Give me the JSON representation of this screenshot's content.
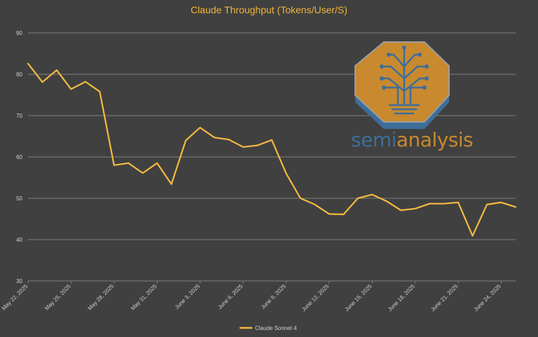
{
  "colors": {
    "background": "#404040",
    "title": "#F0B53A",
    "line": "#F5B942",
    "grid": "#808080",
    "tick_text": "#D0D0D0",
    "logo_orange": "#C9892E",
    "logo_blue": "#3E6E9A",
    "logo_text_orange": "#C9892E",
    "logo_text_blue": "#3E6E9A"
  },
  "logo": {
    "icon": "tree-circuit-icon",
    "text_part1": "semi",
    "text_part2": "analysis"
  },
  "chart_data": {
    "type": "line",
    "title": "Claude Throughput (Tokens/User/S)",
    "xlabel": "",
    "ylabel": "",
    "ylim": [
      30,
      90
    ],
    "yticks": [
      30,
      40,
      50,
      60,
      70,
      80,
      90
    ],
    "grid": true,
    "legend_position": "bottom",
    "x_tick_labels": [
      "May 22, 2025",
      "May 25, 2025",
      "May 28, 2025",
      "May 31, 2025",
      "June 3, 2025",
      "June 6, 2025",
      "June 9, 2025",
      "June 12, 2025",
      "June 15, 2025",
      "June 18, 2025",
      "June 21, 2025",
      "June 24, 2025"
    ],
    "x_tick_index": [
      0,
      3,
      6,
      9,
      12,
      15,
      18,
      21,
      24,
      27,
      30,
      33
    ],
    "series": [
      {
        "name": "Claude Sonnet 4",
        "values": [
          82.6,
          78.1,
          81.0,
          76.4,
          78.2,
          75.8,
          58.0,
          58.5,
          56.1,
          58.5,
          53.4,
          64.0,
          67.1,
          64.7,
          64.2,
          62.4,
          62.8,
          64.1,
          56.0,
          50.0,
          48.5,
          46.2,
          46.1,
          50.0,
          50.9,
          49.3,
          47.1,
          47.5,
          48.7,
          48.7,
          49.0,
          40.9,
          48.5,
          49.0,
          47.9
        ]
      }
    ]
  }
}
